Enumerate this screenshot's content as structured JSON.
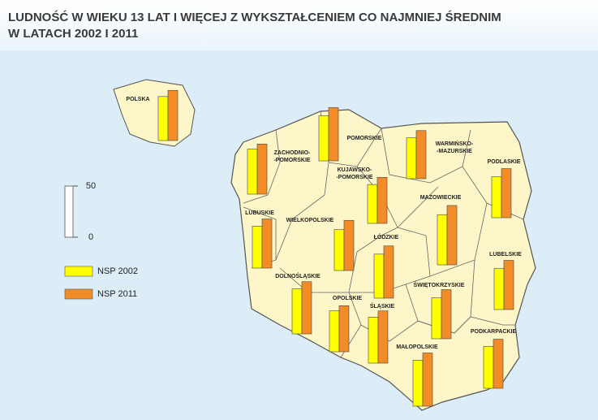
{
  "header": {
    "title": [
      "LUDNOŚĆ W WIEKU 13 LAT I WIĘCEJ Z WYKSZTAŁCENIEM CO NAJMNIEJ ŚREDNIM",
      "W LATACH 2002 I 2011"
    ]
  },
  "scale": {
    "ticks": [
      0,
      50
    ]
  },
  "legend": {
    "series": [
      {
        "name": "NSP 2002",
        "color": "#ffff00"
      },
      {
        "name": "NSP 2011",
        "color": "#f28c28"
      }
    ]
  },
  "regions": [
    {
      "label": [
        "POLSKA"
      ],
      "values": [
        43,
        49
      ]
    },
    {
      "label": [
        "ZACHODNIO-",
        "-POMORSKIE"
      ],
      "values": [
        44,
        49
      ]
    },
    {
      "label": [
        "POMORSKIE"
      ],
      "values": [
        44,
        52
      ]
    },
    {
      "label": [
        "WARMIŃSKO-",
        "-MAZURSKIE"
      ],
      "values": [
        40,
        47
      ]
    },
    {
      "label": [
        "KUJAWSKO-",
        "-POMORSKIE"
      ],
      "values": [
        38,
        45
      ]
    },
    {
      "label": [
        "PODLASKIE"
      ],
      "values": [
        40,
        48
      ]
    },
    {
      "label": [
        "LUBUSKIE"
      ],
      "values": [
        41,
        48
      ]
    },
    {
      "label": [
        "WIELKOPOLSKIE"
      ],
      "values": [
        40,
        49
      ]
    },
    {
      "label": [
        "MAZOWIECKIE"
      ],
      "values": [
        49,
        58
      ]
    },
    {
      "label": [
        "ŁÓDZKIE"
      ],
      "values": [
        43,
        51
      ]
    },
    {
      "label": [
        "LUBELSKIE"
      ],
      "values": [
        40,
        48
      ]
    },
    {
      "label": [
        "DOLNOŚLĄSKIE"
      ],
      "values": [
        44,
        51
      ]
    },
    {
      "label": [
        "OPOLSKIE"
      ],
      "values": [
        40,
        45
      ]
    },
    {
      "label": [
        "ŚWIĘTOKRZYSKIE"
      ],
      "values": [
        40,
        48
      ]
    },
    {
      "label": [
        "ŚLĄSKIE"
      ],
      "values": [
        45,
        51
      ]
    },
    {
      "label": [
        "PODKARPACKIE"
      ],
      "values": [
        41,
        48
      ]
    },
    {
      "label": [
        "MAŁOPOLSKIE"
      ],
      "values": [
        45,
        52
      ]
    }
  ]
}
